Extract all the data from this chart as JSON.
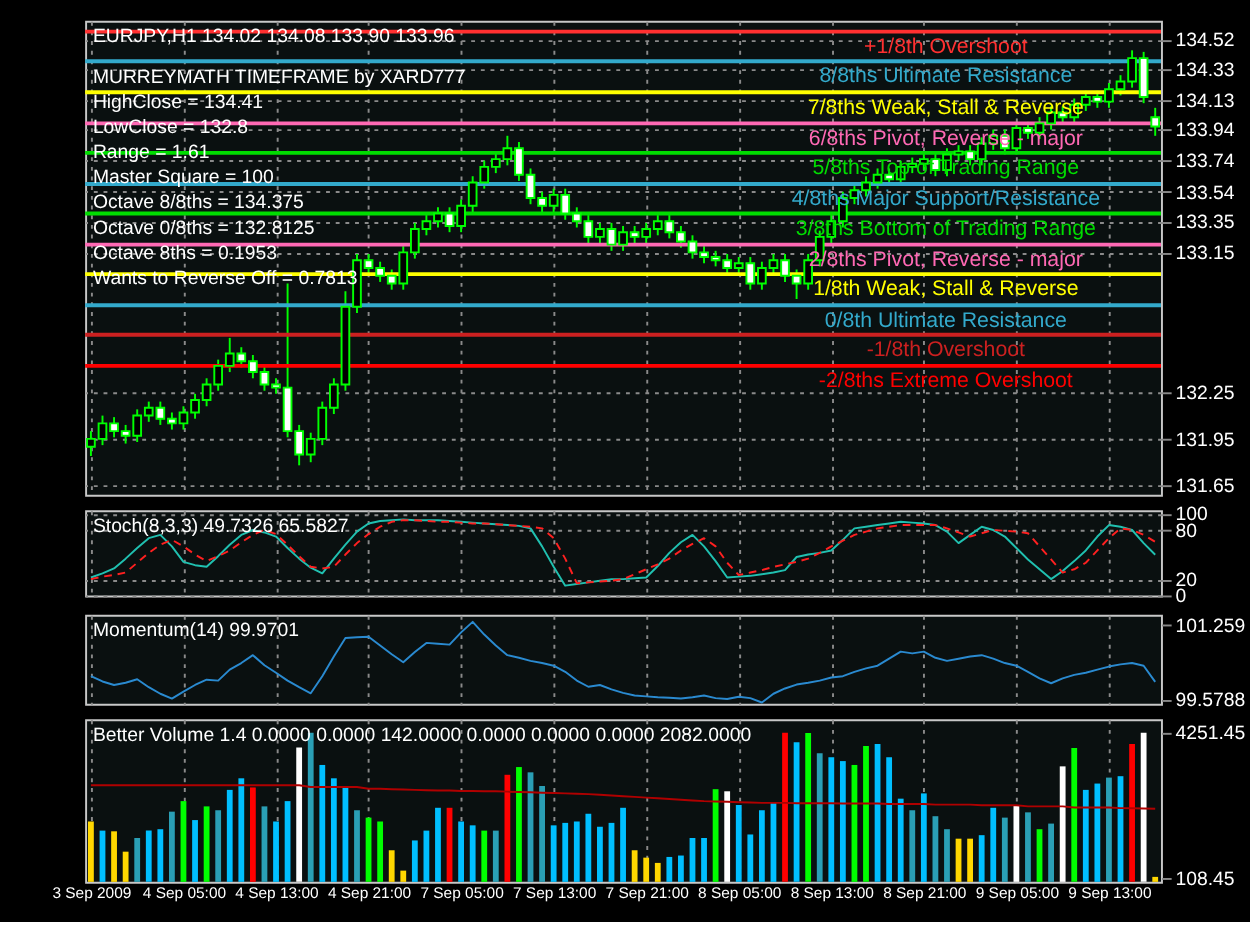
{
  "chart_data": [
    {
      "type": "candlestick",
      "title": "EURJPY,H1  134.02 134.08 133.90 133.96",
      "annotations": [
        "MURREYMATH TIMEFRAME by XARD777",
        "HighClose = 134.41",
        "LowClose = 132.8",
        "Range = 1.61",
        "Master Square = 100",
        "Octave 8/8ths = 134.375",
        "Octave 0/8ths = 132.8125",
        "Octave 8ths = 0.1953",
        "Wants to Reverse Off = 0.7813"
      ],
      "series": [
        {
          "color": "#00ff00",
          "ohlc": [
            [
              131.9,
              132.0,
              131.84,
              131.95
            ],
            [
              131.95,
              132.1,
              131.91,
              132.05
            ],
            [
              132.05,
              132.09,
              131.96,
              132.0
            ],
            [
              132.0,
              132.04,
              131.92,
              131.97
            ],
            [
              131.97,
              132.14,
              131.93,
              132.1
            ],
            [
              132.1,
              132.19,
              132.06,
              132.15
            ],
            [
              132.15,
              132.19,
              132.04,
              132.08
            ],
            [
              132.08,
              132.12,
              132.01,
              132.05
            ],
            [
              132.05,
              132.16,
              132.01,
              132.12
            ],
            [
              132.12,
              132.24,
              132.08,
              132.2
            ],
            [
              132.2,
              132.34,
              132.16,
              132.3
            ],
            [
              132.3,
              132.46,
              132.26,
              132.42
            ],
            [
              132.42,
              132.6,
              132.38,
              132.5
            ],
            [
              132.5,
              132.54,
              132.41,
              132.45
            ],
            [
              132.45,
              132.49,
              132.34,
              132.38
            ],
            [
              132.38,
              132.42,
              132.26,
              132.3
            ],
            [
              132.3,
              132.34,
              132.24,
              132.28
            ],
            [
              132.28,
              132.95,
              131.96,
              132.0
            ],
            [
              132.0,
              132.04,
              131.78,
              131.85
            ],
            [
              131.85,
              131.99,
              131.8,
              131.95
            ],
            [
              131.95,
              132.19,
              131.91,
              132.15
            ],
            [
              132.15,
              132.34,
              132.11,
              132.3
            ],
            [
              132.3,
              132.9,
              132.26,
              132.8
            ],
            [
              132.8,
              133.14,
              132.76,
              133.1
            ],
            [
              133.1,
              133.14,
              133.01,
              133.05
            ],
            [
              133.05,
              133.09,
              132.96,
              133.0
            ],
            [
              133.0,
              133.04,
              132.91,
              132.95
            ],
            [
              132.95,
              133.19,
              132.91,
              133.15
            ],
            [
              133.15,
              133.34,
              133.11,
              133.3
            ],
            [
              133.3,
              133.39,
              133.26,
              133.35
            ],
            [
              133.35,
              133.44,
              133.31,
              133.4
            ],
            [
              133.4,
              133.44,
              133.28,
              133.32
            ],
            [
              133.32,
              133.49,
              133.28,
              133.45
            ],
            [
              133.45,
              133.64,
              133.41,
              133.6
            ],
            [
              133.6,
              133.74,
              133.56,
              133.7
            ],
            [
              133.7,
              133.79,
              133.66,
              133.75
            ],
            [
              133.75,
              133.9,
              133.71,
              133.82
            ],
            [
              133.82,
              133.86,
              133.61,
              133.65
            ],
            [
              133.65,
              133.69,
              133.46,
              133.5
            ],
            [
              133.5,
              133.54,
              133.41,
              133.45
            ],
            [
              133.45,
              133.56,
              133.41,
              133.52
            ],
            [
              133.52,
              133.56,
              133.36,
              133.4
            ],
            [
              133.4,
              133.44,
              133.31,
              133.35
            ],
            [
              133.35,
              133.39,
              133.21,
              133.25
            ],
            [
              133.25,
              133.34,
              133.21,
              133.3
            ],
            [
              133.3,
              133.34,
              133.16,
              133.2
            ],
            [
              133.2,
              133.32,
              133.16,
              133.28
            ],
            [
              133.28,
              133.32,
              133.21,
              133.25
            ],
            [
              133.25,
              133.34,
              133.21,
              133.3
            ],
            [
              133.3,
              133.39,
              133.26,
              133.35
            ],
            [
              133.35,
              133.39,
              133.24,
              133.28
            ],
            [
              133.28,
              133.32,
              133.18,
              133.22
            ],
            [
              133.22,
              133.26,
              133.11,
              133.15
            ],
            [
              133.15,
              133.19,
              133.08,
              133.12
            ],
            [
              133.12,
              133.16,
              133.06,
              133.1
            ],
            [
              133.1,
              133.14,
              133.01,
              133.05
            ],
            [
              133.05,
              133.12,
              133.01,
              133.08
            ],
            [
              133.08,
              133.12,
              132.91,
              132.95
            ],
            [
              132.95,
              133.09,
              132.91,
              133.05
            ],
            [
              133.05,
              133.14,
              133.01,
              133.1
            ],
            [
              133.1,
              133.14,
              132.96,
              133.0
            ],
            [
              133.0,
              133.04,
              132.85,
              132.95
            ],
            [
              132.95,
              133.14,
              132.91,
              133.1
            ],
            [
              133.1,
              133.29,
              133.06,
              133.25
            ],
            [
              133.25,
              133.39,
              133.21,
              133.35
            ],
            [
              133.35,
              133.54,
              133.31,
              133.5
            ],
            [
              133.5,
              133.59,
              133.46,
              133.55
            ],
            [
              133.55,
              133.64,
              133.51,
              133.6
            ],
            [
              133.6,
              133.69,
              133.56,
              133.65
            ],
            [
              133.65,
              133.69,
              133.58,
              133.62
            ],
            [
              133.62,
              133.74,
              133.58,
              133.7
            ],
            [
              133.7,
              133.76,
              133.66,
              133.72
            ],
            [
              133.72,
              133.79,
              133.68,
              133.75
            ],
            [
              133.75,
              133.79,
              133.64,
              133.68
            ],
            [
              133.68,
              133.82,
              133.64,
              133.78
            ],
            [
              133.78,
              133.84,
              133.74,
              133.8
            ],
            [
              133.8,
              133.84,
              133.71,
              133.75
            ],
            [
              133.75,
              133.89,
              133.71,
              133.85
            ],
            [
              133.85,
              133.94,
              133.81,
              133.9
            ],
            [
              133.9,
              133.94,
              133.78,
              133.82
            ],
            [
              133.82,
              133.99,
              133.78,
              133.95
            ],
            [
              133.95,
              133.99,
              133.88,
              133.92
            ],
            [
              133.92,
              134.02,
              133.88,
              133.98
            ],
            [
              133.98,
              134.09,
              133.94,
              134.05
            ],
            [
              134.05,
              134.09,
              133.98,
              134.02
            ],
            [
              134.02,
              134.14,
              133.98,
              134.1
            ],
            [
              134.1,
              134.19,
              134.06,
              134.15
            ],
            [
              134.15,
              134.19,
              134.08,
              134.12
            ],
            [
              134.12,
              134.24,
              134.08,
              134.2
            ],
            [
              134.2,
              134.29,
              134.16,
              134.25
            ],
            [
              134.25,
              134.45,
              134.21,
              134.4
            ],
            [
              134.4,
              134.44,
              134.11,
              134.15
            ],
            [
              134.02,
              134.08,
              133.9,
              133.96
            ]
          ]
        }
      ],
      "ref_lines": [
        {
          "axis": "y",
          "value": 134.57,
          "label": "+1/8th Overshoot",
          "color": "#ff3030"
        },
        {
          "axis": "y",
          "value": 134.38,
          "label": "8/8ths Ultimate Resistance",
          "color": "#33aacc"
        },
        {
          "axis": "y",
          "value": 134.18,
          "label": "7/8ths Weak, Stall & Reverse",
          "color": "#ffff00"
        },
        {
          "axis": "y",
          "value": 133.98,
          "label": "6/8ths Pivot, Reverse - major",
          "color": "#ff69b4"
        },
        {
          "axis": "y",
          "value": 133.79,
          "label": "5/8ths Top of Trading Range",
          "color": "#00dd00"
        },
        {
          "axis": "y",
          "value": 133.59,
          "label": "4/8ths Major Support/Resistance",
          "color": "#33aacc"
        },
        {
          "axis": "y",
          "value": 133.4,
          "label": "3/8ths Bottom of Trading Range",
          "color": "#00dd00"
        },
        {
          "axis": "y",
          "value": 133.2,
          "label": "2/8ths Pivot, Reverse - major",
          "color": "#ff69b4"
        },
        {
          "axis": "y",
          "value": 133.01,
          "label": "1/8th Weak, Stall & Reverse",
          "color": "#ffff00"
        },
        {
          "axis": "y",
          "value": 132.81,
          "label": "0/8th Ultimate Resistance",
          "color": "#33aacc"
        },
        {
          "axis": "y",
          "value": 132.62,
          "label": "-1/8th Overshoot",
          "color": "#cc2020"
        },
        {
          "axis": "y",
          "value": 132.42,
          "label": "-2/8ths Extreme Overshoot",
          "color": "#ff0000"
        }
      ],
      "ylim": [
        131.59,
        134.64
      ],
      "yticks": [
        131.65,
        131.95,
        132.25,
        133.15,
        133.35,
        133.54,
        133.74,
        133.94,
        134.13,
        134.33,
        134.52
      ],
      "grid": true,
      "tick_labels": "y"
    },
    {
      "type": "line",
      "title": "Stoch(8,3,3) 49.7326 65.5827",
      "series": [
        {
          "color": "#20c0b0",
          "values": [
            22,
            27,
            33,
            45,
            58,
            70,
            74,
            60,
            41,
            37,
            35,
            48,
            62,
            74,
            80,
            77,
            72,
            58,
            45,
            34,
            27,
            45,
            62,
            78,
            88,
            91,
            92,
            93,
            92,
            92,
            92,
            91,
            90,
            89,
            88,
            87,
            86,
            85,
            82,
            60,
            35,
            12,
            14,
            16,
            18,
            20,
            20,
            21,
            22,
            36,
            52,
            65,
            74,
            60,
            42,
            22,
            23,
            24,
            26,
            28,
            31,
            47,
            50,
            52,
            55,
            68,
            82,
            84,
            86,
            88,
            90,
            89,
            88,
            86,
            78,
            64,
            74,
            84,
            80,
            72,
            58,
            44,
            32,
            20,
            30,
            42,
            55,
            72,
            86,
            84,
            80,
            64,
            49.7
          ]
        },
        {
          "color": "#ff2020",
          "line_style": "dashed",
          "values": [
            20,
            23,
            25,
            28,
            40,
            52,
            62,
            68,
            60,
            50,
            42,
            48,
            55,
            65,
            74,
            80,
            75,
            62,
            48,
            35,
            33,
            35,
            50,
            64,
            75,
            84,
            90,
            92,
            92,
            91,
            90,
            90,
            89,
            88,
            88,
            87,
            86,
            85,
            84,
            82,
            70,
            45,
            15,
            16,
            17,
            18,
            20,
            26,
            32,
            38,
            45,
            55,
            63,
            70,
            60,
            40,
            25,
            28,
            31,
            35,
            38,
            41,
            45,
            52,
            60,
            67,
            74,
            78,
            82,
            84,
            86,
            86,
            86,
            86,
            82,
            77,
            72,
            76,
            80,
            79,
            78,
            76,
            60,
            44,
            28,
            32,
            40,
            55,
            70,
            82,
            80,
            74,
            65.6
          ]
        }
      ],
      "ylim": [
        0,
        104
      ],
      "yticks": [
        0,
        20,
        80,
        100
      ],
      "grid": true,
      "tick_labels": "y"
    },
    {
      "type": "line",
      "title": "Momentum(14) 99.9701",
      "series": [
        {
          "color": "#2a8ad0",
          "values": [
            100.1,
            99.98,
            99.9,
            99.95,
            100.03,
            99.85,
            99.7,
            99.59,
            99.75,
            99.9,
            100.02,
            100.0,
            100.25,
            100.4,
            100.58,
            100.35,
            100.18,
            100.0,
            99.85,
            99.71,
            100.1,
            100.55,
            100.97,
            100.99,
            101.0,
            100.8,
            100.6,
            100.42,
            100.65,
            100.86,
            100.84,
            100.82,
            101.1,
            101.34,
            101.05,
            100.8,
            100.58,
            100.52,
            100.45,
            100.4,
            100.34,
            100.2,
            100.0,
            99.86,
            99.9,
            99.8,
            99.72,
            99.66,
            99.64,
            99.62,
            99.61,
            99.59,
            99.62,
            99.66,
            99.6,
            99.58,
            99.63,
            99.6,
            99.5,
            99.7,
            99.82,
            99.91,
            99.95,
            100.0,
            100.07,
            100.1,
            100.2,
            100.28,
            100.34,
            100.5,
            100.66,
            100.62,
            100.66,
            100.52,
            100.45,
            100.5,
            100.55,
            100.58,
            100.5,
            100.4,
            100.34,
            100.2,
            100.05,
            99.94,
            100.05,
            100.13,
            100.18,
            100.25,
            100.32,
            100.37,
            100.4,
            100.34,
            99.97
          ]
        }
      ],
      "ylim": [
        99.47,
        101.5
      ],
      "yticks": [
        99.5788,
        101.259
      ],
      "grid": "x",
      "tick_labels": "y"
    },
    {
      "type": "bar",
      "title": "Better Volume 1.4 0.0000 0.0000 142.0000 0.0000 0.0000 0.0000 2082.0000",
      "categories": [
        "3 Sep 2009",
        null,
        null,
        null,
        null,
        null,
        null,
        null,
        "4 Sep 05:00",
        null,
        null,
        null,
        null,
        null,
        null,
        null,
        "4 Sep 13:00",
        null,
        null,
        null,
        null,
        null,
        null,
        null,
        "4 Sep 21:00",
        null,
        null,
        null,
        null,
        null,
        null,
        null,
        "7 Sep 05:00",
        null,
        null,
        null,
        null,
        null,
        null,
        null,
        "7 Sep 13:00",
        null,
        null,
        null,
        null,
        null,
        null,
        null,
        "7 Sep 21:00",
        null,
        null,
        null,
        null,
        null,
        null,
        null,
        "8 Sep 05:00",
        null,
        null,
        null,
        null,
        null,
        null,
        null,
        "8 Sep 13:00",
        null,
        null,
        null,
        null,
        null,
        null,
        null,
        "8 Sep 21:00",
        null,
        null,
        null,
        null,
        null,
        null,
        null,
        "9 Sep 05:00",
        null,
        null,
        null,
        null,
        null,
        null,
        null,
        "9 Sep 13:00",
        null,
        null,
        null,
        null
      ],
      "series": [
        {
          "type": "bar",
          "values": [
            1720,
            1460,
            1440,
            860,
            1250,
            1460,
            1500,
            2000,
            2300,
            1760,
            2150,
            2040,
            2620,
            2950,
            2690,
            2150,
            1720,
            2300,
            3830,
            4250,
            3330,
            2950,
            2690,
            2040,
            1830,
            1720,
            900,
            320,
            1180,
            1460,
            2110,
            2110,
            1720,
            1610,
            1460,
            1460,
            3050,
            3270,
            3120,
            2730,
            1610,
            1680,
            1720,
            1940,
            1570,
            1680,
            2110,
            900,
            690,
            540,
            710,
            750,
            1250,
            1250,
            2640,
            2580,
            2190,
            1350,
            2040,
            2260,
            4250,
            3980,
            4240,
            3660,
            3550,
            3440,
            3330,
            3870,
            3930,
            3550,
            2370,
            2040,
            2520,
            1870,
            1500,
            1230,
            1230,
            1330,
            2110,
            1830,
            2190,
            1980,
            1500,
            1660,
            3290,
            3810,
            2620,
            2800,
            2970,
            3010,
            3930,
            4250,
            142
          ],
          "colors": [
            "#ffd700",
            "#00bfff",
            "#ffd700",
            "#ffd700",
            "#2a9fb5",
            "#00bfff",
            "#00bfff",
            "#2a9fb5",
            "#00ff00",
            "#00bfff",
            "#00ff00",
            "#2a9fb5",
            "#00bfff",
            "#00bfff",
            "#ff0000",
            "#2a9fb5",
            "#00bfff",
            "#00bfff",
            "#ffffff",
            "#2a9fb5",
            "#00bfff",
            "#00bfff",
            "#00bfff",
            "#2a9fb5",
            "#00ff00",
            "#00ff00",
            "#ffd700",
            "#ffd700",
            "#00bfff",
            "#00bfff",
            "#00bfff",
            "#ff0000",
            "#00bfff",
            "#00bfff",
            "#00ff00",
            "#2a9fb5",
            "#ff0000",
            "#00ff00",
            "#2a9fb5",
            "#2a9fb5",
            "#00bfff",
            "#00bfff",
            "#00bfff",
            "#00bfff",
            "#00bfff",
            "#00bfff",
            "#00bfff",
            "#ffd700",
            "#ffd700",
            "#ffd700",
            "#00bfff",
            "#00bfff",
            "#00bfff",
            "#00bfff",
            "#00ff00",
            "#ffffff",
            "#00bfff",
            "#00bfff",
            "#00bfff",
            "#00bfff",
            "#ff0000",
            "#00bfff",
            "#00ff00",
            "#2a9fb5",
            "#00bfff",
            "#00bfff",
            "#00ff00",
            "#00ff00",
            "#00bfff",
            "#00bfff",
            "#00bfff",
            "#2a9fb5",
            "#00bfff",
            "#2a9fb5",
            "#2a9fb5",
            "#ffd700",
            "#ffd700",
            "#00bfff",
            "#00bfff",
            "#2a9fb5",
            "#ffffff",
            "#2a9fb5",
            "#00ff00",
            "#2a9fb5",
            "#ffffff",
            "#00ff00",
            "#00bfff",
            "#00bfff",
            "#2a9fb5",
            "#00bfff",
            "#ff0000",
            "#ffffff",
            "#ffd700"
          ]
        },
        {
          "type": "line",
          "color": "#b00000",
          "values": [
            2750,
            2750,
            2750,
            2750,
            2750,
            2750,
            2750,
            2750,
            2750,
            2750,
            2750,
            2750,
            2750,
            2750,
            2750,
            2750,
            2750,
            2750,
            2750,
            2700,
            2700,
            2700,
            2700,
            2700,
            2650,
            2650,
            2640,
            2630,
            2620,
            2610,
            2600,
            2600,
            2590,
            2590,
            2580,
            2580,
            2570,
            2560,
            2550,
            2540,
            2530,
            2520,
            2510,
            2500,
            2480,
            2460,
            2440,
            2420,
            2400,
            2380,
            2360,
            2340,
            2320,
            2300,
            2290,
            2280,
            2270,
            2260,
            2250,
            2250,
            2250,
            2240,
            2240,
            2240,
            2240,
            2230,
            2230,
            2230,
            2230,
            2220,
            2220,
            2220,
            2220,
            2200,
            2200,
            2200,
            2200,
            2180,
            2180,
            2180,
            2180,
            2150,
            2150,
            2150,
            2150,
            2120,
            2120,
            2120,
            2120,
            2100,
            2095,
            2090,
            2082
          ]
        }
      ],
      "ylim": [
        0,
        4630
      ],
      "yticks": [
        108.45,
        4251.45
      ],
      "grid": "x"
    }
  ]
}
